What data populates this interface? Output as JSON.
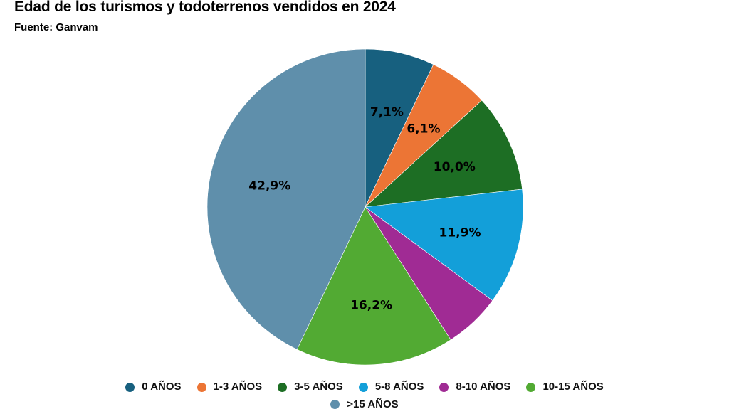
{
  "chart_data": {
    "type": "pie",
    "title": "Edad de los turismos y todoterrenos vendidos en 2024",
    "subtitle": "Fuente: Ganvam",
    "categories": [
      "0 AÑOS",
      "1-3 AÑOS",
      "3-5 AÑOS",
      "5-8 AÑOS",
      "8-10 AÑOS",
      "10-15 AÑOS",
      ">15 AÑOS"
    ],
    "values": [
      7.1,
      6.1,
      10.0,
      11.9,
      5.8,
      16.2,
      42.9
    ],
    "labels": [
      "7,1%",
      "6,1%",
      "10,0%",
      "11,9%",
      "",
      "16,2%",
      "42,9%"
    ],
    "colors": [
      "#17607f",
      "#ec7535",
      "#1d6e24",
      "#139fd9",
      "#a02b94",
      "#52aa33",
      "#5f8fab"
    ],
    "unit": "%",
    "legend_position": "bottom",
    "start_angle": "12 o'clock, clockwise"
  }
}
